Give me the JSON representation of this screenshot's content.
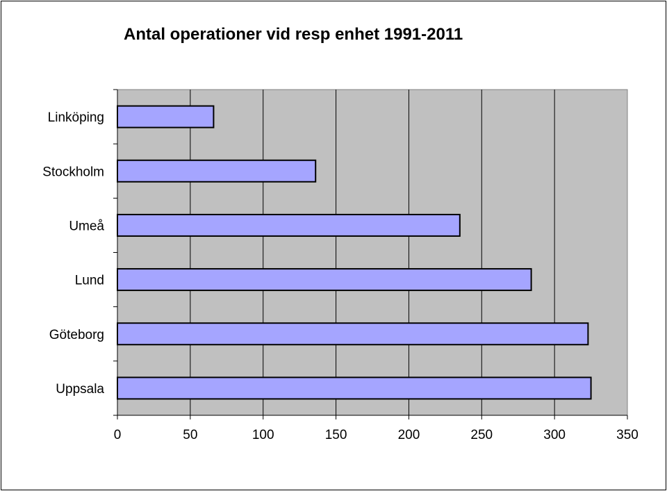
{
  "chart_data": {
    "type": "bar",
    "orientation": "horizontal",
    "title": "Antal operationer vid resp enhet 1991-2011",
    "categories": [
      "Linköping",
      "Stockholm",
      "Umeå",
      "Lund",
      "Göteborg",
      "Uppsala"
    ],
    "values": [
      66,
      136,
      235,
      284,
      323,
      325
    ],
    "xlim": [
      0,
      350
    ],
    "xticks": [
      "0",
      "50",
      "100",
      "150",
      "200",
      "250",
      "300",
      "350"
    ],
    "grid": true,
    "bar_color": "#a5a5ff",
    "plot_background": "#c0c0c0"
  }
}
